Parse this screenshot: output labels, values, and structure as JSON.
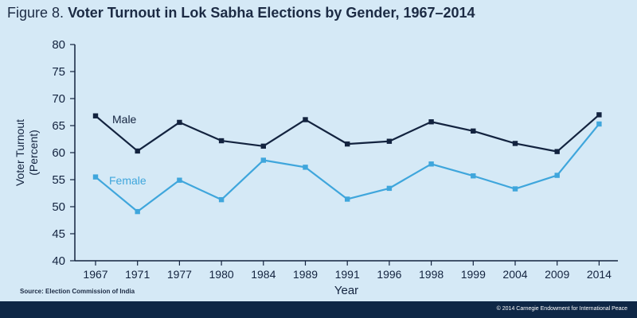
{
  "figure": {
    "label": "Figure 8.",
    "title": "Voter Turnout in Lok Sabha Elections by Gender, 1967–2014"
  },
  "chart_data": {
    "type": "line",
    "categories": [
      "1967",
      "1971",
      "1977",
      "1980",
      "1984",
      "1989",
      "1991",
      "1996",
      "1998",
      "1999",
      "2004",
      "2009",
      "2014"
    ],
    "series": [
      {
        "name": "Male",
        "color": "#13233f",
        "values": [
          66.8,
          60.3,
          65.6,
          62.2,
          61.2,
          66.1,
          61.6,
          62.1,
          65.7,
          64.0,
          61.7,
          60.2,
          67.0
        ]
      },
      {
        "name": "Female",
        "color": "#3fa6dc",
        "values": [
          55.5,
          49.1,
          54.9,
          51.3,
          58.6,
          57.3,
          51.4,
          53.4,
          57.9,
          55.7,
          53.3,
          55.8,
          65.3
        ]
      }
    ],
    "xlabel": "Year",
    "ylabel_lines": [
      "Voter Turnout",
      "(Percent)"
    ],
    "ylim": [
      40,
      80
    ],
    "yticks": [
      40,
      45,
      50,
      55,
      60,
      65,
      70,
      75,
      80
    ],
    "grid": false,
    "legend": "inline labels"
  },
  "source": "Source: Election Commission of India",
  "copyright": "© 2014 Carnegie Endowment for International Peace"
}
